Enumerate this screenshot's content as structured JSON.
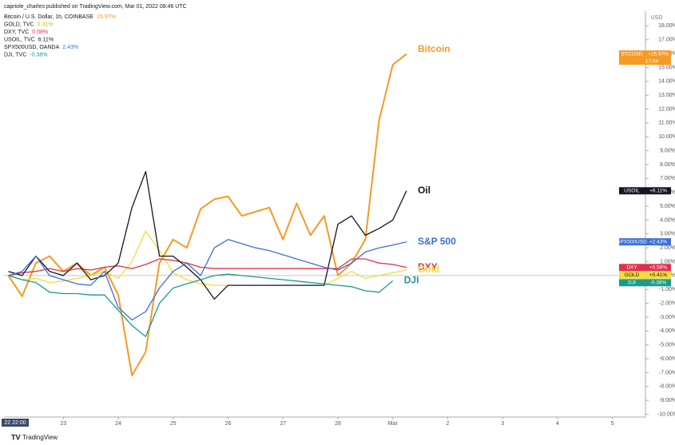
{
  "chart_data": {
    "type": "line",
    "header": "capriole_charles published on TradingView.com, Mar 01, 2022 08:46 UTC",
    "currency": "USD",
    "x_start_label": "22 22:00",
    "footer": "TradingView",
    "x": [
      22.0,
      22.25,
      22.5,
      22.75,
      23.0,
      23.25,
      23.5,
      23.75,
      24.0,
      24.25,
      24.5,
      24.75,
      25.0,
      25.25,
      25.5,
      25.75,
      26.0,
      26.25,
      26.5,
      26.75,
      27.0,
      27.25,
      27.5,
      27.75,
      28.0,
      28.25,
      28.5,
      28.75,
      29.0,
      29.25
    ],
    "xlim": [
      21.92,
      33.6
    ],
    "xticks": [
      23,
      24,
      25,
      26,
      27,
      28,
      {
        "value": 29,
        "label": "Mar"
      },
      {
        "value": 30,
        "label": "2"
      },
      {
        "value": 31,
        "label": "3"
      },
      {
        "value": 32,
        "label": "4"
      },
      {
        "value": 33,
        "label": "5"
      }
    ],
    "ylim": [
      -10.2,
      19
    ],
    "yticks": [
      {
        "value": -10,
        "label": "-10.00%"
      },
      {
        "value": -9,
        "label": "-9.00%"
      },
      {
        "value": -8,
        "label": "-8.00%"
      },
      {
        "value": -7,
        "label": "-7.00%"
      },
      {
        "value": -6,
        "label": "-6.00%"
      },
      {
        "value": -5,
        "label": "-5.00%"
      },
      {
        "value": -4,
        "label": "-4.00%"
      },
      {
        "value": -3,
        "label": "-3.00%"
      },
      {
        "value": -2,
        "label": "-2.00%"
      },
      {
        "value": -1,
        "label": "-1.00%"
      },
      {
        "value": 0,
        "label": "0.00%"
      },
      {
        "value": 1,
        "label": "1.00%"
      },
      {
        "value": 2,
        "label": "2.00%"
      },
      {
        "value": 3,
        "label": "3.00%"
      },
      {
        "value": 4,
        "label": "4.00%"
      },
      {
        "value": 5,
        "label": "5.00%"
      },
      {
        "value": 6,
        "label": "6.00%"
      },
      {
        "value": 7,
        "label": "7.00%"
      },
      {
        "value": 8,
        "label": "8.00%"
      },
      {
        "value": 9,
        "label": "9.00%"
      },
      {
        "value": 10,
        "label": "10.00%"
      },
      {
        "value": 11,
        "label": "11.00%"
      },
      {
        "value": 12,
        "label": "12.00%"
      },
      {
        "value": 13,
        "label": "13.00%"
      },
      {
        "value": 14,
        "label": "14.00%"
      },
      {
        "value": 15,
        "label": "15.00%"
      },
      {
        "value": 16,
        "label": "16.00%"
      },
      {
        "value": 17,
        "label": "17.00%"
      },
      {
        "value": 18,
        "label": "18.00%"
      }
    ],
    "series": [
      {
        "name": "Bitcoin / U.S. Dollar, 1h, COINBASE",
        "label": "Bitcoin",
        "ticker": "BTCUSD",
        "color": "#f59a23",
        "legend_value": "15.97%",
        "tag_value": "+15.97%",
        "tag_note": "17:04",
        "values": [
          0,
          -1.5,
          0.9,
          1.4,
          0.3,
          0.9,
          0,
          0.6,
          -1.4,
          -7.2,
          -5.5,
          0.9,
          2.6,
          2.0,
          4.8,
          5.5,
          5.7,
          4.3,
          4.6,
          4.9,
          2.6,
          5.2,
          2.9,
          4.3,
          0,
          0.9,
          2.6,
          11.2,
          15.2,
          15.97
        ]
      },
      {
        "name": "GOLD, TVC",
        "label": "Gold",
        "ticker": "GOLD",
        "color": "#f2dc3a",
        "legend_value": "0.41%",
        "tag_value": "+0.41%",
        "values": [
          0,
          -0.3,
          -0.2,
          -0.5,
          -0.4,
          -0.2,
          0,
          0.3,
          -0.2,
          1.0,
          3.2,
          1.8,
          0.2,
          -0.3,
          -0.6,
          -0.7,
          -0.7,
          -0.7,
          -0.7,
          -0.7,
          -0.7,
          -0.7,
          -0.7,
          -0.7,
          -0.2,
          0.3,
          -0.2,
          0.0,
          0.2,
          0.41
        ]
      },
      {
        "name": "DXY, TVC",
        "label": "DXY",
        "ticker": "DXY",
        "color": "#e0314b",
        "legend_value": "0.58%",
        "tag_value": "+0.58%",
        "values": [
          0,
          0.2,
          0.3,
          0.5,
          0.3,
          0.5,
          0.4,
          0.6,
          0.7,
          0.5,
          0.8,
          1.2,
          1.1,
          0.9,
          0.6,
          0.5,
          0.5,
          0.5,
          0.5,
          0.5,
          0.5,
          0.5,
          0.5,
          0.5,
          0.5,
          1.2,
          1.2,
          0.9,
          0.8,
          0.58
        ]
      },
      {
        "name": "USOIL, TVC",
        "label": "Oil",
        "ticker": "USOIL",
        "color": "#131722",
        "legend_value": "6.11%",
        "tag_value": "+6.11%",
        "values": [
          0.3,
          0,
          1.4,
          0.3,
          0,
          0.9,
          -0.3,
          0,
          0.9,
          4.9,
          7.5,
          1.4,
          1.4,
          0.6,
          -0.3,
          -1.7,
          -0.7,
          -0.7,
          -0.7,
          -0.7,
          -0.7,
          -0.7,
          -0.7,
          -0.7,
          3.7,
          4.3,
          2.9,
          3.4,
          4.0,
          6.11
        ]
      },
      {
        "name": "SPX500USD, OANDA",
        "label": "S&P 500",
        "ticker": "SPX500USD",
        "color": "#3a6fd8",
        "legend_value": "2.43%",
        "tag_value": "+2.43%",
        "values": [
          0,
          0.3,
          1.4,
          0,
          -0.3,
          -0.6,
          -0.7,
          0.3,
          -2.3,
          -3.2,
          -2.6,
          -0.9,
          0.3,
          0.9,
          0,
          2.0,
          2.6,
          2.3,
          2.0,
          1.8,
          1.5,
          1.2,
          0.9,
          0.6,
          0.4,
          0.9,
          1.7,
          2.0,
          2.2,
          2.43
        ]
      },
      {
        "name": "DJI, TVC",
        "label": "DJI",
        "ticker": "DJI",
        "color": "#1a9a8c",
        "legend_value": "-0.38%",
        "tag_value": "-0.38%",
        "values": [
          0,
          -0.3,
          -0.5,
          -1.2,
          -1.3,
          -1.3,
          -1.4,
          -1.4,
          -2.5,
          -3.6,
          -4.4,
          -2.0,
          -0.9,
          -0.6,
          -0.3,
          0.0,
          0.1,
          0.0,
          -0.1,
          -0.2,
          -0.3,
          -0.4,
          -0.5,
          -0.6,
          -0.7,
          -0.8,
          -1.1,
          -1.2,
          -0.38,
          null
        ]
      }
    ]
  }
}
